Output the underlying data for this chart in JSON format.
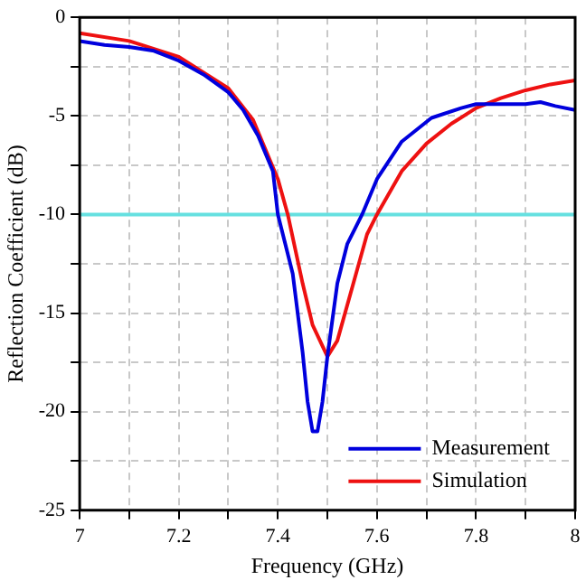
{
  "chart_data": {
    "type": "line",
    "xlabel": "Frequency (GHz)",
    "ylabel": "Reflection Coefficient (dB)",
    "xlim": [
      7,
      8
    ],
    "xticks": [
      7,
      {
        "value": 7.1,
        "label": null
      },
      7.2,
      {
        "value": 7.3,
        "label": null
      },
      7.4,
      {
        "value": 7.5,
        "label": null
      },
      7.6,
      {
        "value": 7.7,
        "label": null
      },
      7.8,
      {
        "value": 7.9,
        "label": null
      },
      8
    ],
    "ylim": [
      -25,
      0
    ],
    "yticks": [
      -25,
      {
        "value": -22.5,
        "label": null
      },
      -20,
      {
        "value": -17.5,
        "label": null
      },
      -15,
      {
        "value": -12.5,
        "label": null
      },
      -10,
      {
        "value": -7.5,
        "label": null
      },
      -5,
      {
        "value": -2.5,
        "label": null
      },
      0
    ],
    "grid": true,
    "legend": "bottom right",
    "marker": "none",
    "line_style": "solid",
    "ref_lines": [
      {
        "axis": "y",
        "value": -10,
        "color": "#66e0e0"
      }
    ],
    "series": [
      {
        "name": "Measurement",
        "color": "#0000dd",
        "x": [
          7.0,
          7.05,
          7.1,
          7.15,
          7.2,
          7.25,
          7.3,
          7.33,
          7.36,
          7.39,
          7.4,
          7.43,
          7.45,
          7.46,
          7.47,
          7.48,
          7.49,
          7.5,
          7.52,
          7.54,
          7.57,
          7.6,
          7.65,
          7.71,
          7.77,
          7.8,
          7.85,
          7.9,
          7.93,
          7.96,
          8.0
        ],
        "values": [
          -1.2,
          -1.4,
          -1.5,
          -1.7,
          -2.2,
          -2.9,
          -3.8,
          -4.7,
          -6,
          -7.8,
          -10,
          -13,
          -17,
          -19.5,
          -21,
          -21,
          -19.5,
          -17.2,
          -13.5,
          -11.5,
          -10,
          -8.2,
          -6.3,
          -5.1,
          -4.6,
          -4.4,
          -4.4,
          -4.4,
          -4.3,
          -4.5,
          -4.7
        ]
      },
      {
        "name": "Simulation",
        "color": "#ee1111",
        "x": [
          7.0,
          7.1,
          7.2,
          7.3,
          7.35,
          7.4,
          7.42,
          7.45,
          7.47,
          7.5,
          7.52,
          7.55,
          7.58,
          7.6,
          7.65,
          7.7,
          7.75,
          7.8,
          7.85,
          7.9,
          7.95,
          8.0
        ],
        "values": [
          -0.8,
          -1.2,
          -2.0,
          -3.6,
          -5.2,
          -8.2,
          -10,
          -13.5,
          -15.6,
          -17.2,
          -16.4,
          -13.7,
          -11,
          -10,
          -7.8,
          -6.4,
          -5.4,
          -4.6,
          -4.1,
          -3.7,
          -3.4,
          -3.2
        ]
      }
    ]
  }
}
